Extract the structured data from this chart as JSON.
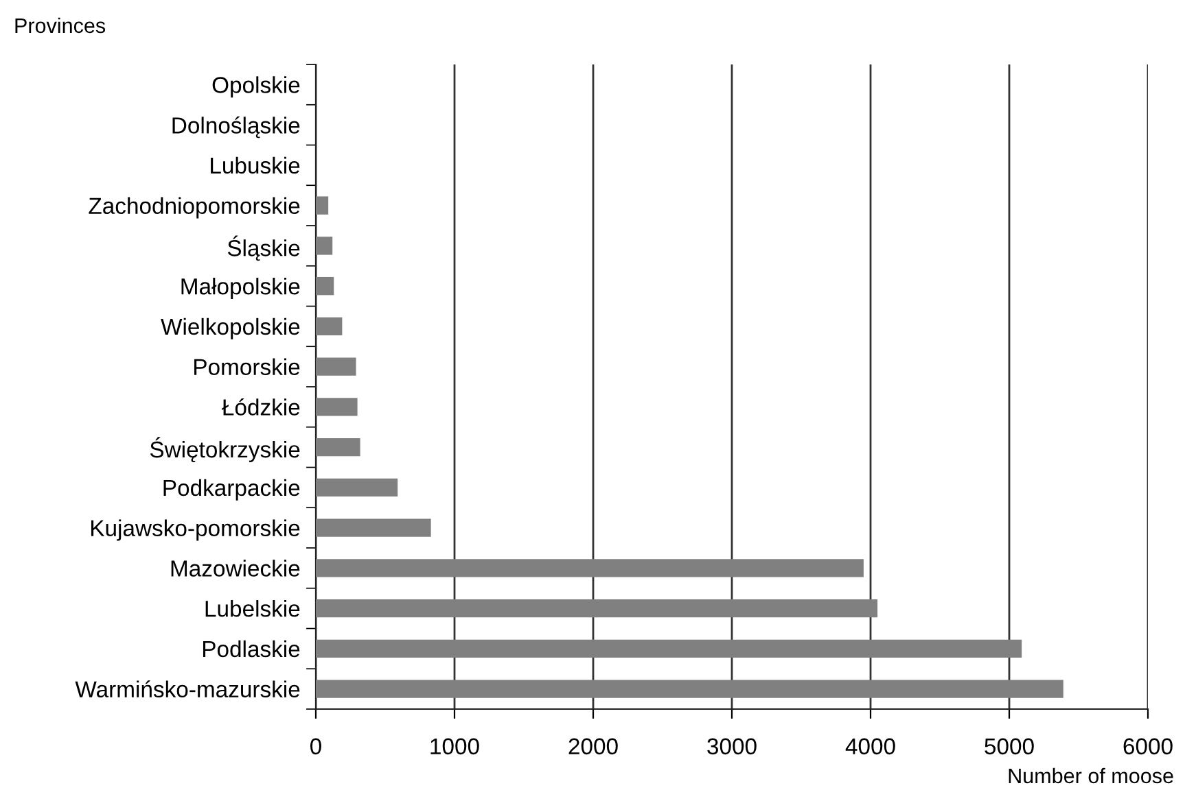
{
  "chart_data": {
    "type": "bar",
    "orientation": "horizontal",
    "ylabel": "Provinces",
    "xlabel": "Number of moose",
    "categories": [
      "Opolskie",
      "Dolnośląskie",
      "Lubuskie",
      "Zachodniopomorskie",
      "Śląskie",
      "Małopolskie",
      "Wielkopolskie",
      "Pomorskie",
      "Łódzkie",
      "Świętokrzyskie",
      "Podkarpackie",
      "Kujawsko-pomorskie",
      "Mazowieckie",
      "Lubelskie",
      "Podlaskie",
      "Warmińsko-mazurskie"
    ],
    "values": [
      0,
      0,
      0,
      90,
      120,
      130,
      190,
      290,
      300,
      320,
      590,
      830,
      3950,
      4050,
      5090,
      5390
    ],
    "color": "#808080",
    "xlim": [
      0,
      6000
    ],
    "xticks": [
      0,
      1000,
      2000,
      3000,
      4000,
      5000,
      6000
    ],
    "grid": "x"
  }
}
